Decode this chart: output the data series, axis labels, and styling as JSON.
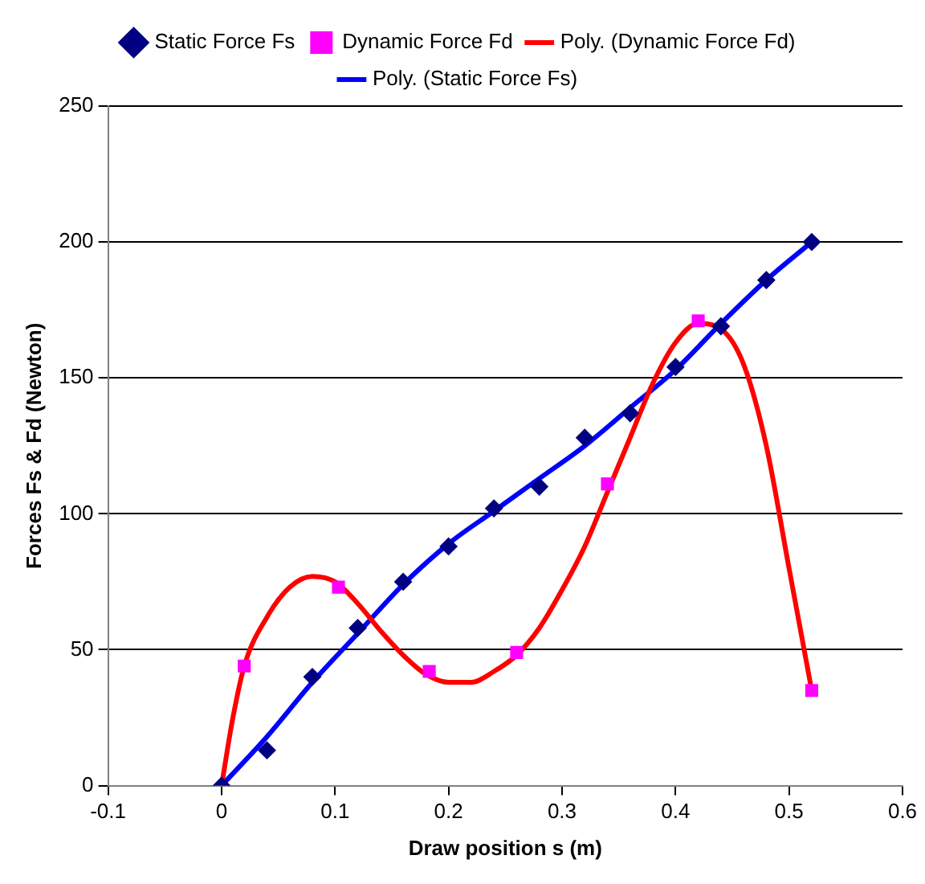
{
  "chart_data": {
    "type": "scatter",
    "xlabel": "Draw position s (m)",
    "ylabel": "Forces Fs & Fd (Newton)",
    "xlim": [
      -0.1,
      0.6
    ],
    "xticks": [
      -0.1,
      0,
      0.1,
      0.2,
      0.3,
      0.4,
      0.5,
      0.6
    ],
    "ylim": [
      0,
      250
    ],
    "yticks": [
      0,
      50,
      100,
      150,
      200,
      250
    ],
    "grid": "y",
    "legend": "top",
    "series": [
      {
        "name": "Static Force Fs",
        "type": "scatter",
        "marker": "diamond",
        "color": "#000080",
        "x": [
          0,
          0.04,
          0.08,
          0.12,
          0.16,
          0.2,
          0.24,
          0.28,
          0.32,
          0.36,
          0.4,
          0.44,
          0.48,
          0.52
        ],
        "values": [
          0,
          13,
          40,
          58,
          75,
          88,
          102,
          110,
          128,
          137,
          154,
          169,
          186,
          200
        ]
      },
      {
        "name": "Dynamic Force Fd",
        "type": "scatter",
        "marker": "square",
        "color": "#ff00ff",
        "x": [
          0.02,
          0.103,
          0.183,
          0.26,
          0.34,
          0.42,
          0.52
        ],
        "values": [
          44,
          73,
          42,
          49,
          111,
          171,
          35
        ]
      },
      {
        "name": "Poly. (Dynamic Force Fd)",
        "type": "line",
        "marker": "none",
        "line_style": "solid",
        "color": "#ff0000",
        "x": [
          0,
          0.01,
          0.02,
          0.04,
          0.06,
          0.08,
          0.1,
          0.12,
          0.14,
          0.16,
          0.18,
          0.2,
          0.22,
          0.24,
          0.26,
          0.28,
          0.3,
          0.32,
          0.34,
          0.36,
          0.38,
          0.4,
          0.42,
          0.44,
          0.46,
          0.48,
          0.5,
          0.52
        ],
        "values": [
          0,
          25,
          44,
          62,
          73,
          77,
          75,
          67,
          57,
          48,
          41,
          38,
          38,
          42,
          48,
          58,
          72,
          88,
          108,
          128,
          148,
          163,
          170,
          168,
          155,
          125,
          80,
          35
        ]
      },
      {
        "name": "Poly. (Static Force Fs)",
        "type": "line",
        "marker": "none",
        "line_style": "solid",
        "color": "#0000ff",
        "x": [
          0,
          0.04,
          0.08,
          0.12,
          0.16,
          0.2,
          0.24,
          0.28,
          0.32,
          0.36,
          0.4,
          0.44,
          0.48,
          0.52
        ],
        "values": [
          0,
          18,
          38,
          56,
          74,
          89,
          101,
          113,
          125,
          139,
          153,
          170,
          186,
          200
        ]
      }
    ]
  }
}
